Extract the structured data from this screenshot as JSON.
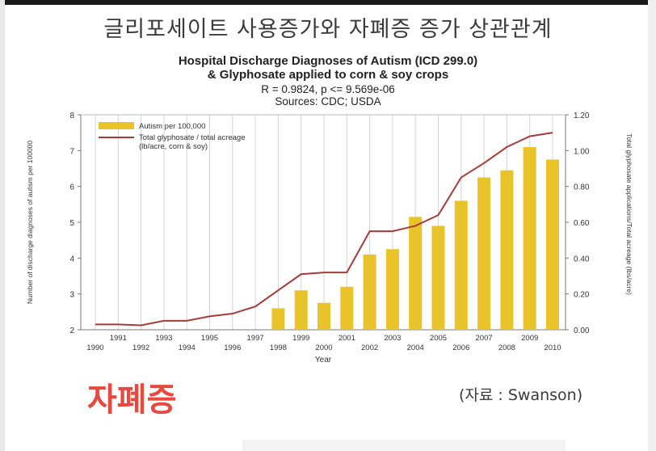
{
  "header": {
    "korean_title": "글리포세이트 사용증가와 자폐증 증가 상관관계"
  },
  "chart_data": {
    "type": "bar",
    "title_lines": [
      "Hospital Discharge Diagnoses of Autism (ICD 299.0)",
      "& Glyphosate applied to corn & soy crops",
      "R = 0.9824, p <= 9.569e-06",
      "Sources: CDC; USDA"
    ],
    "xlabel": "Year",
    "ylabel_left": "Number of discharge diagnoses of autism per 100000",
    "ylabel_right": "Total glyphosate applications/Total acreage (lbs/acre)",
    "x": [
      1990,
      1991,
      1992,
      1993,
      1994,
      1995,
      1996,
      1997,
      1998,
      1999,
      2000,
      2001,
      2002,
      2003,
      2004,
      2005,
      2006,
      2007,
      2008,
      2009,
      2010
    ],
    "x_tick_labels_top": [
      "1991",
      "1993",
      "1995",
      "1997",
      "1999",
      "2001",
      "2003",
      "2005",
      "2007",
      "2009"
    ],
    "x_tick_labels_bottom": [
      "1990",
      "1992",
      "1994",
      "1996",
      "1998",
      "2000",
      "2002",
      "2004",
      "2006",
      "2008",
      "2010"
    ],
    "ylim_left": [
      2,
      8
    ],
    "ytick_labels_left": [
      "2",
      "3",
      "4",
      "5",
      "6",
      "7",
      "8"
    ],
    "ylim_right": [
      0,
      1.2
    ],
    "ytick_labels_right": [
      "0.00",
      "0.20",
      "0.40",
      "0.60",
      "0.80",
      "1.00",
      "1.20"
    ],
    "legend_position": "top-left",
    "grid": "vertical",
    "series": [
      {
        "name": "Autism  per 100,000",
        "kind": "bar",
        "axis": "left",
        "color": "#e8c32a",
        "x": [
          1998,
          1999,
          2000,
          2001,
          2002,
          2003,
          2004,
          2005,
          2006,
          2007,
          2008,
          2009,
          2010
        ],
        "values": [
          2.6,
          3.1,
          2.75,
          3.2,
          4.1,
          4.25,
          5.15,
          4.9,
          5.6,
          6.25,
          6.45,
          7.1,
          6.75
        ]
      },
      {
        "name": "Total glyphosate / total acreage",
        "name_line2": "(lb/acre, corn & soy)",
        "kind": "line",
        "axis": "right",
        "color": "#a83a3a",
        "x": [
          1990,
          1991,
          1992,
          1993,
          1994,
          1995,
          1996,
          1997,
          1998,
          1999,
          2000,
          2001,
          2002,
          2003,
          2004,
          2005,
          2006,
          2007,
          2008,
          2009,
          2010
        ],
        "values": [
          0.03,
          0.03,
          0.025,
          0.05,
          0.05,
          0.075,
          0.09,
          0.13,
          0.22,
          0.31,
          0.32,
          0.32,
          0.55,
          0.55,
          0.58,
          0.64,
          0.85,
          0.93,
          1.02,
          1.08,
          1.1
        ]
      }
    ]
  },
  "footer": {
    "big_word": "자폐증",
    "source_note": "(자료 : Swanson)"
  },
  "colors": {
    "background": "#ffffff",
    "bar": "#e8c32a",
    "line": "#a83a3a",
    "accent_text": "#e8483d"
  }
}
